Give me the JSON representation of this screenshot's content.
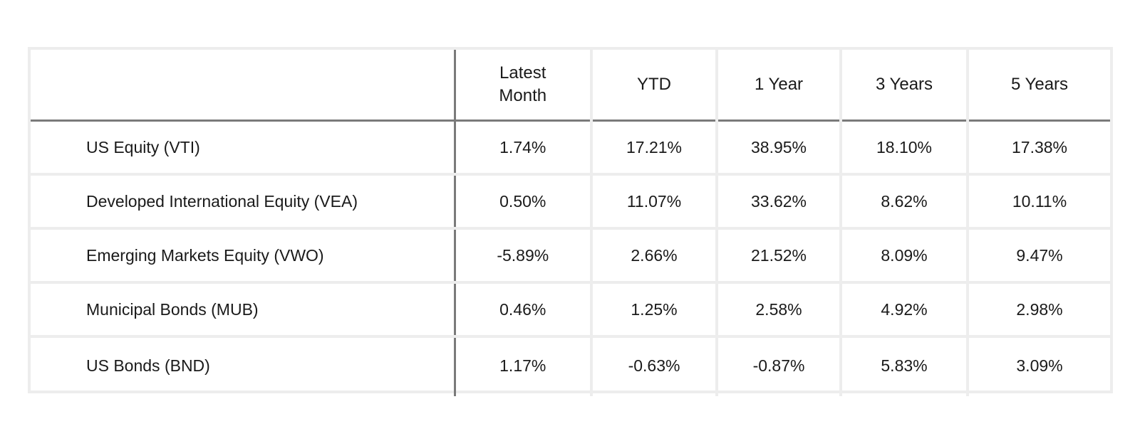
{
  "table": {
    "headers": [
      "",
      "Latest\nMonth",
      "YTD",
      "1 Year",
      "3 Years",
      "5 Years"
    ],
    "rows": [
      {
        "fund": "US Equity (VTI)",
        "latest_month": "1.74%",
        "ytd": "17.21%",
        "one_year": "38.95%",
        "three_years": "18.10%",
        "five_years": "17.38%"
      },
      {
        "fund": "Developed International Equity (VEA)",
        "latest_month": "0.50%",
        "ytd": "11.07%",
        "one_year": "33.62%",
        "three_years": "8.62%",
        "five_years": "10.11%"
      },
      {
        "fund": "Emerging Markets Equity (VWO)",
        "latest_month": "-5.89%",
        "ytd": "2.66%",
        "one_year": "21.52%",
        "three_years": "8.09%",
        "five_years": "9.47%"
      },
      {
        "fund": "Municipal Bonds (MUB)",
        "latest_month": "0.46%",
        "ytd": "1.25%",
        "one_year": "2.58%",
        "three_years": "4.92%",
        "five_years": "2.98%"
      },
      {
        "fund": "US Bonds (BND)",
        "latest_month": "1.17%",
        "ytd": "-0.63%",
        "one_year": "-0.87%",
        "three_years": "5.83%",
        "five_years": "3.09%"
      }
    ]
  }
}
